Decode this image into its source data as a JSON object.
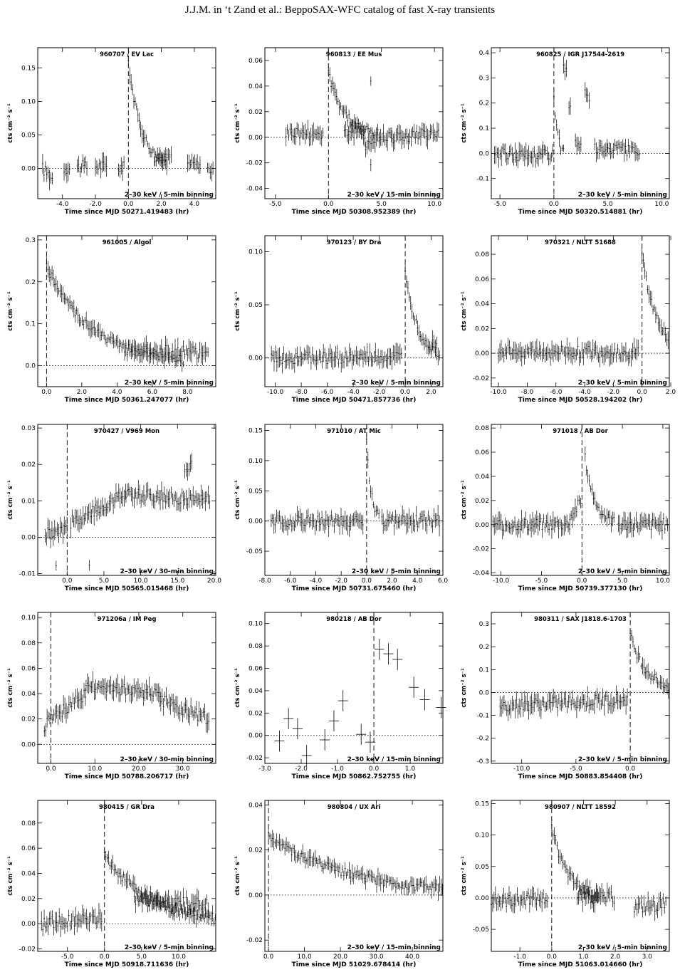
{
  "header": {
    "title": "J.J.M. in ‘t Zand et al.: BeppoSAX-WFC catalog of fast X-ray transients"
  },
  "ylabel": "cts cm⁻² s⁻¹",
  "chart_data": [
    {
      "type": "line",
      "title": "960707 / EV Lac",
      "band": "2–30 keV / 5-min binning",
      "xlabel": "Time since MJD 50271.419483 (hr)",
      "xlim": [
        -5.5,
        5.3
      ],
      "ylim": [
        -0.045,
        0.18
      ],
      "xticks": [
        -4.0,
        -2.0,
        0.0,
        2.0,
        4.0
      ],
      "xticklabels": [
        "-4.0",
        "-2.0",
        "0.0",
        "2.0",
        "4.0"
      ],
      "yticks": [
        0.0,
        0.05,
        0.1,
        0.15
      ],
      "yticklabels": [
        "0.00",
        "0.05",
        "0.10",
        "0.15"
      ],
      "segments": [
        [
          -5.2,
          -4.6,
          0.0,
          -0.015
        ],
        [
          -3.9,
          -3.5,
          0.002,
          0.0
        ],
        [
          -3.1,
          -2.5,
          0.003,
          0.002
        ],
        [
          -2.0,
          -1.3,
          0.004,
          0.003
        ],
        [
          -0.6,
          -0.2,
          0.002,
          0.001
        ]
      ],
      "peak": {
        "t0": 0.0,
        "A": 0.16,
        "tau": 0.8
      },
      "extra": [
        [
          1.6,
          2.6,
          0.015,
          0.018
        ],
        [
          3.6,
          4.4,
          0.008,
          0.006
        ],
        [
          4.8,
          5.2,
          0.0,
          -0.005
        ]
      ]
    },
    {
      "type": "line",
      "title": "960813 / EE Mus",
      "band": "2–30 keV / 15-min binning",
      "xlabel": "Time since MJD 50308.952389 (hr)",
      "xlim": [
        -6.0,
        10.8
      ],
      "ylim": [
        -0.048,
        0.07
      ],
      "xticks": [
        -5.0,
        0.0,
        5.0,
        10.0
      ],
      "xticklabels": [
        "-5.0",
        "0.0",
        "5.0",
        "10.0"
      ],
      "yticks": [
        -0.04,
        -0.02,
        0.0,
        0.02,
        0.04,
        0.06
      ],
      "yticklabels": [
        "-0.04",
        "-0.02",
        "0.00",
        "0.02",
        "0.04",
        "0.06"
      ],
      "segments": [
        [
          -4.0,
          -0.5,
          0.004,
          0.003
        ],
        [
          1.5,
          3.5,
          0.005,
          0.002
        ],
        [
          3.5,
          6.0,
          -0.005,
          0.003
        ],
        [
          6.0,
          10.5,
          0.0,
          0.003
        ]
      ],
      "peak": {
        "t0": 0.0,
        "A": 0.05,
        "tau": 1.6
      },
      "extra": [
        [
          4.0,
          4.1,
          0.042,
          0.042
        ],
        [
          4.0,
          4.1,
          -0.02,
          -0.02
        ]
      ]
    },
    {
      "type": "line",
      "title": "960825 / IGR J17544-2619",
      "band": "2–30 keV / 5-min binning",
      "xlabel": "Time since MJD 50320.514881 (hr)",
      "xlim": [
        -5.8,
        10.7
      ],
      "ylim": [
        -0.18,
        0.42
      ],
      "xticks": [
        -5.0,
        0.0,
        5.0,
        10.0
      ],
      "xticklabels": [
        "-5.0",
        "0.0",
        "5.0",
        "10.0"
      ],
      "yticks": [
        -0.1,
        0.0,
        0.1,
        0.2,
        0.3,
        0.4
      ],
      "yticklabels": [
        "-0.1",
        "0.0",
        "0.1",
        "0.2",
        "0.3",
        "0.4"
      ],
      "segments": [
        [
          -5.5,
          -1.0,
          0.0,
          -0.01
        ],
        [
          -1.0,
          0.0,
          0.0,
          0.0
        ],
        [
          3.8,
          5.0,
          0.02,
          0.0
        ],
        [
          5.0,
          8.0,
          0.02,
          0.0
        ]
      ],
      "peak": {
        "t0": 0.0,
        "A": 0.24,
        "tau": 0.3
      },
      "extra": [
        [
          0.9,
          1.2,
          0.35,
          0.32
        ],
        [
          1.4,
          1.6,
          0.18,
          0.17
        ],
        [
          2.9,
          3.4,
          0.24,
          0.22
        ],
        [
          2.0,
          2.6,
          0.05,
          0.02
        ]
      ]
    },
    {
      "type": "line",
      "title": "961005 / Algol",
      "band": "2–30 keV / 5-min binning",
      "xlabel": "Time since MJD 50361.247077 (hr)",
      "xlim": [
        -0.5,
        9.6
      ],
      "ylim": [
        -0.05,
        0.31
      ],
      "xticks": [
        0.0,
        2.0,
        4.0,
        6.0,
        8.0
      ],
      "xticklabels": [
        "0.0",
        "2.0",
        "4.0",
        "6.0",
        "8.0"
      ],
      "yticks": [
        0.0,
        0.1,
        0.2,
        0.3
      ],
      "yticklabels": [
        "0.0",
        "0.1",
        "0.2",
        "0.3"
      ],
      "segments": [
        [
          4.5,
          9.2,
          0.04,
          0.03
        ]
      ],
      "peak": {
        "t0": 0.0,
        "A": 0.24,
        "tau": 2.6
      },
      "extra": []
    },
    {
      "type": "line",
      "title": "970123 / BY Dra",
      "band": "2–30 keV / 5-min binning",
      "xlabel": "Time since MJD 50471.857736 (hr)",
      "xlim": [
        -10.8,
        2.9
      ],
      "ylim": [
        -0.027,
        0.115
      ],
      "xticks": [
        -10.0,
        -8.0,
        -6.0,
        -4.0,
        -2.0,
        0.0,
        2.0
      ],
      "xticklabels": [
        "-10.0",
        "-8.0",
        "-6.0",
        "-4.0",
        "-2.0",
        "0.0",
        "2.0"
      ],
      "yticks": [
        0.0,
        0.05,
        0.1
      ],
      "yticklabels": [
        "0.00",
        "0.05",
        "0.10"
      ],
      "segments": [
        [
          -10.3,
          -0.2,
          0.0,
          0.0
        ],
        [
          1.8,
          2.5,
          0.01,
          0.015
        ]
      ],
      "peak": {
        "t0": 0.0,
        "A": 0.085,
        "tau": 0.9
      },
      "extra": []
    },
    {
      "type": "line",
      "title": "970321 / NLTT 51688",
      "band": "2–30 keV / 5-min binning",
      "xlabel": "Time since MJD 50528.194202 (hr)",
      "xlim": [
        -10.5,
        1.9
      ],
      "ylim": [
        -0.027,
        0.095
      ],
      "xticks": [
        -10.0,
        -8.0,
        -6.0,
        -4.0,
        -2.0,
        0.0,
        2.0
      ],
      "xticklabels": [
        "-10.0",
        "-8.0",
        "-6.0",
        "-4.0",
        "-2.0",
        "0.0",
        "2.0"
      ],
      "yticks": [
        -0.02,
        0.0,
        0.02,
        0.04,
        0.06,
        0.08
      ],
      "yticklabels": [
        "-0.02",
        "0.00",
        "0.02",
        "0.04",
        "0.06",
        "0.08"
      ],
      "segments": [
        [
          -10.0,
          -0.2,
          0.002,
          0.0
        ]
      ],
      "peak": {
        "t0": 0.0,
        "A": 0.08,
        "tau": 1.0
      },
      "extra": []
    },
    {
      "type": "line",
      "title": "970427 / V969 Mon",
      "band": "2–30 keV / 30-min binning",
      "xlabel": "Time since MJD 50565.015468 (hr)",
      "xlim": [
        -4.0,
        20.2
      ],
      "ylim": [
        -0.0105,
        0.031
      ],
      "xticks": [
        0.0,
        5.0,
        10.0,
        15.0,
        20.0
      ],
      "xticklabels": [
        "0.0",
        "5.0",
        "10.0",
        "15.0",
        "20.0"
      ],
      "yticks": [
        -0.01,
        0.0,
        0.01,
        0.02,
        0.03
      ],
      "yticklabels": [
        "-0.01",
        "0.00",
        "0.01",
        "0.02",
        "0.03"
      ],
      "segments": [
        [
          -3.0,
          0.0,
          0.001,
          0.002
        ],
        [
          0.5,
          8.0,
          0.004,
          0.012
        ],
        [
          8.0,
          19.5,
          0.012,
          0.01
        ]
      ],
      "peak": null,
      "extra": [
        [
          16.0,
          17.0,
          0.018,
          0.02
        ],
        [
          -1.5,
          -1.4,
          -0.007,
          -0.007
        ],
        [
          3.0,
          3.1,
          -0.007,
          -0.007
        ]
      ]
    },
    {
      "type": "line",
      "title": "971010 / AT Mic",
      "band": "2–30 keV / 5-min binning",
      "xlabel": "Time since MJD 50731.675460 (hr)",
      "xlim": [
        -8.0,
        6.0
      ],
      "ylim": [
        -0.09,
        0.16
      ],
      "xticks": [
        -8.0,
        -6.0,
        -4.0,
        -2.0,
        0.0,
        2.0,
        4.0,
        6.0
      ],
      "xticklabels": [
        "-8.0",
        "-6.0",
        "-4.0",
        "-2.0",
        "0.0",
        "2.0",
        "4.0",
        "6.0"
      ],
      "yticks": [
        -0.05,
        0.0,
        0.05,
        0.1,
        0.15
      ],
      "yticklabels": [
        "-0.05",
        "0.00",
        "0.05",
        "0.10",
        "0.15"
      ],
      "segments": [
        [
          -7.5,
          -0.2,
          0.0,
          0.0
        ],
        [
          1.2,
          5.8,
          0.0,
          0.0
        ]
      ],
      "peak": {
        "t0": 0.0,
        "A": 0.13,
        "tau": 0.35
      },
      "extra": []
    },
    {
      "type": "line",
      "title": "971018 / AB Dor",
      "band": "2–30 keV / 5-min binning",
      "xlabel": "Time since MJD 50739.377130 (hr)",
      "xlim": [
        -11.2,
        10.8
      ],
      "ylim": [
        -0.042,
        0.083
      ],
      "xticks": [
        -10.0,
        -5.0,
        0.0,
        5.0,
        10.0
      ],
      "xticklabels": [
        "-10.0",
        "-5.0",
        "0.0",
        "5.0",
        "10.0"
      ],
      "yticks": [
        -0.04,
        -0.02,
        0.0,
        0.02,
        0.04,
        0.06,
        0.08
      ],
      "yticklabels": [
        "-0.04",
        "-0.02",
        "0.00",
        "0.02",
        "0.04",
        "0.06",
        "0.08"
      ],
      "segments": [
        [
          -11.0,
          -1.5,
          0.0,
          0.0
        ],
        [
          -1.5,
          0.0,
          0.005,
          0.02
        ],
        [
          4.5,
          10.7,
          0.0,
          0.0
        ]
      ],
      "peak": {
        "t0": 0.4,
        "A": 0.055,
        "tau": 1.2
      },
      "extra": []
    },
    {
      "type": "line",
      "title": "971206a / IM Peg",
      "band": "2–30 keV / 30-min binning",
      "xlabel": "Time since MJD 50788.206717 (hr)",
      "xlim": [
        -3.0,
        37.5
      ],
      "ylim": [
        -0.015,
        0.104
      ],
      "xticks": [
        0.0,
        10.0,
        20.0,
        30.0
      ],
      "xticklabels": [
        "0.0",
        "10.0",
        "20.0",
        "30.0"
      ],
      "yticks": [
        0.0,
        0.02,
        0.04,
        0.06,
        0.08,
        0.1
      ],
      "yticklabels": [
        "0.00",
        "0.02",
        "0.04",
        "0.06",
        "0.08",
        "0.10"
      ],
      "segments": [
        [
          -1.5,
          8.0,
          0.015,
          0.04
        ],
        [
          8.0,
          25.0,
          0.045,
          0.04
        ],
        [
          25.0,
          36.0,
          0.035,
          0.02
        ]
      ],
      "peak": null,
      "extra": []
    },
    {
      "type": "line",
      "title": "980218 / AB Dor",
      "band": "2–30 keV / 15-min binning",
      "xlabel": "Time since MJD 50862.752755 (hr)",
      "xlim": [
        -3.0,
        1.9
      ],
      "ylim": [
        -0.025,
        0.11
      ],
      "xticks": [
        -3.0,
        -2.0,
        -1.0,
        0.0,
        1.0
      ],
      "xticklabels": [
        "-3.0",
        "-2.0",
        "-1.0",
        "0.0",
        "1.0"
      ],
      "yticks": [
        -0.02,
        0.0,
        0.02,
        0.04,
        0.06,
        0.08,
        0.1
      ],
      "yticklabels": [
        "-0.02",
        "0.00",
        "0.02",
        "0.04",
        "0.06",
        "0.08",
        "0.10"
      ],
      "points": [
        [
          -2.6,
          -0.005
        ],
        [
          -2.35,
          0.015
        ],
        [
          -2.1,
          0.006
        ],
        [
          -1.85,
          -0.018
        ],
        [
          -1.35,
          -0.004
        ],
        [
          -1.1,
          0.013
        ],
        [
          -0.85,
          0.031
        ],
        [
          -0.35,
          0.001
        ],
        [
          -0.1,
          -0.006
        ],
        [
          0.15,
          0.077
        ],
        [
          0.4,
          0.073
        ],
        [
          0.65,
          0.068
        ],
        [
          1.1,
          0.043
        ],
        [
          1.4,
          0.032
        ],
        [
          1.85,
          0.025
        ]
      ]
    },
    {
      "type": "line",
      "title": "980311 / SAX J1818.6-1703",
      "band": "2–30 keV / 5-min binning",
      "xlabel": "Time since MJD 50883.854408 (hr)",
      "xlim": [
        -12.8,
        3.6
      ],
      "ylim": [
        -0.31,
        0.35
      ],
      "xticks": [
        -10.0,
        -5.0,
        0.0
      ],
      "xticklabels": [
        "-10.0",
        "-5.0",
        "0.0"
      ],
      "yticks": [
        -0.3,
        -0.2,
        -0.1,
        0.0,
        0.1,
        0.2,
        0.3
      ],
      "yticklabels": [
        "-0.3",
        "-0.2",
        "-0.1",
        "0.0",
        "0.1",
        "0.2",
        "0.3"
      ],
      "segments": [
        [
          -12.0,
          -0.2,
          -0.06,
          -0.03
        ]
      ],
      "peak": {
        "t0": 0.0,
        "A": 0.25,
        "tau": 1.6
      },
      "extra": []
    },
    {
      "type": "line",
      "title": "980415 / GR Dra",
      "band": "2–30 keV / 5-min binning",
      "xlabel": "Time since MJD 50918.711636 (hr)",
      "xlim": [
        -9.0,
        15.0
      ],
      "ylim": [
        -0.022,
        0.098
      ],
      "xticks": [
        -5.0,
        0.0,
        5.0,
        10.0
      ],
      "xticklabels": [
        "-5.0",
        "0.0",
        "5.0",
        "10.0"
      ],
      "yticks": [
        -0.02,
        0.0,
        0.02,
        0.04,
        0.06,
        0.08
      ],
      "yticklabels": [
        "-0.02",
        "0.00",
        "0.02",
        "0.04",
        "0.06",
        "0.08"
      ],
      "segments": [
        [
          -8.5,
          -0.2,
          0.0,
          0.005
        ],
        [
          4.0,
          14.0,
          0.02,
          0.015
        ]
      ],
      "peak": {
        "t0": 0.0,
        "A": 0.055,
        "tau": 6.0
      },
      "extra": []
    },
    {
      "type": "line",
      "title": "980804 / UX Ari",
      "band": "2–30 keV / 15-min binning",
      "xlabel": "Time since MJD 51029.678414 (hr)",
      "xlim": [
        -1.0,
        48.5
      ],
      "ylim": [
        -0.025,
        0.042
      ],
      "xticks": [
        0.0,
        10.0,
        20.0,
        30.0,
        40.0
      ],
      "xticklabels": [
        "0.0",
        "10.0",
        "20.0",
        "30.0",
        "40.0"
      ],
      "yticks": [
        -0.02,
        0.0,
        0.02,
        0.04
      ],
      "yticklabels": [
        "-0.02",
        "0.00",
        "0.02",
        "0.04"
      ],
      "segments": [],
      "peak": {
        "t0": 0.0,
        "A": 0.026,
        "tau": 22.0
      },
      "extra": []
    },
    {
      "type": "line",
      "title": "980907 / NLTT 18592",
      "band": "2–30 keV / 5-min binning",
      "xlabel": "Time since MJD 51063.014660 (hr)",
      "xlim": [
        -1.9,
        3.7
      ],
      "ylim": [
        -0.085,
        0.155
      ],
      "xticks": [
        -1.0,
        0.0,
        1.0,
        2.0,
        3.0
      ],
      "xticklabels": [
        "-1.0",
        "0.0",
        "1.0",
        "2.0",
        "3.0"
      ],
      "yticks": [
        -0.05,
        0.0,
        0.05,
        0.1,
        0.15
      ],
      "yticklabels": [
        "-0.05",
        "0.00",
        "0.05",
        "0.10",
        "0.15"
      ],
      "segments": [
        [
          -1.9,
          -0.1,
          -0.005,
          0.0
        ],
        [
          0.8,
          2.0,
          0.0,
          0.0
        ],
        [
          2.6,
          3.6,
          -0.015,
          -0.01
        ]
      ],
      "peak": {
        "t0": 0.0,
        "A": 0.11,
        "tau": 0.5
      },
      "extra": []
    }
  ]
}
